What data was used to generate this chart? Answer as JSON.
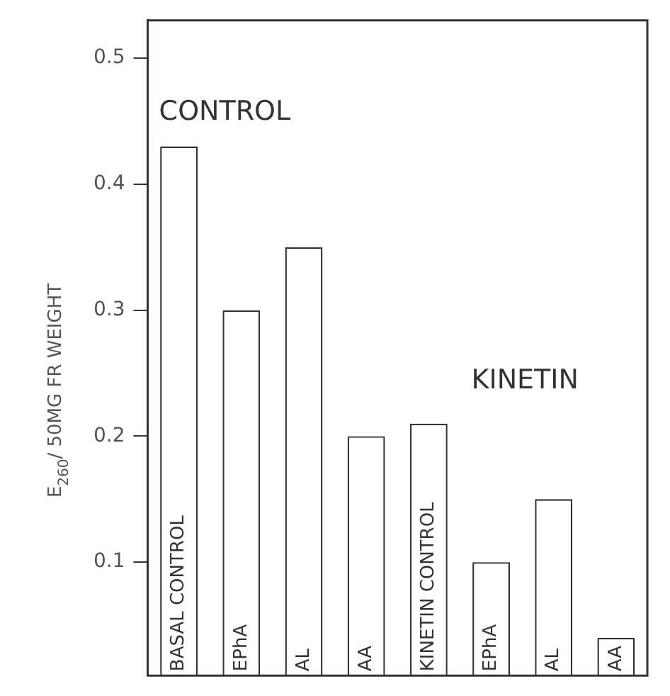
{
  "chart_data": {
    "type": "bar",
    "ylabel": "E$_{260}$/ 50MG FR WEIGHT",
    "categories": [
      "BASAL CONTROL",
      "EPhA",
      "AL",
      "AA",
      "KINETIN CONTROL",
      "EPhA",
      "AL",
      "AA"
    ],
    "values": [
      0.43,
      0.3,
      0.35,
      0.2,
      0.21,
      0.1,
      0.15,
      0.04
    ],
    "color": "#ffffff",
    "ylim": [
      0.01,
      0.53
    ],
    "yticks": [
      0.1,
      0.2,
      0.3,
      0.4,
      0.5
    ],
    "annotations": [
      "CONTROL",
      "KINETIN"
    ],
    "grid": false,
    "legend": false
  }
}
